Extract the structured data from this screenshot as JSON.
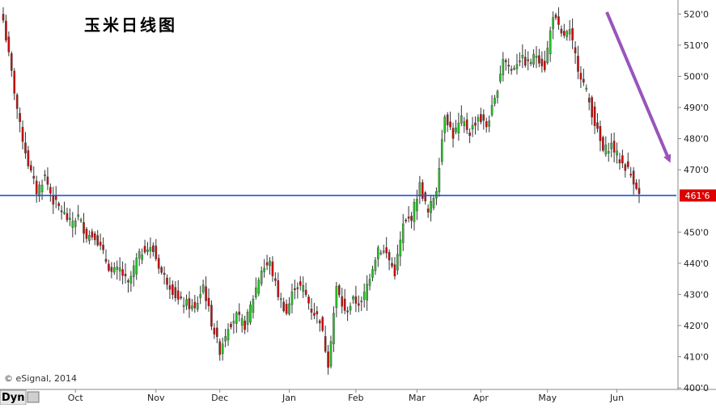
{
  "chart_data": {
    "type": "candlestick",
    "title": "玉米日线图",
    "copyright": "© eSignal, 2014",
    "footer_label": "Dyn",
    "y_ticks": [
      400,
      410,
      420,
      430,
      440,
      450,
      470,
      480,
      490,
      500,
      510,
      520
    ],
    "y_tick_labels": [
      "400'0",
      "410'0",
      "420'0",
      "430'0",
      "440'0",
      "450'0",
      "470'0",
      "480'0",
      "490'0",
      "500'0",
      "510'0",
      "520'0"
    ],
    "ylim": [
      399.5,
      524.5
    ],
    "x_months": [
      "Oct",
      "Nov",
      "Dec",
      "Jan",
      "Feb",
      "Mar",
      "Apr",
      "May",
      "Jun"
    ],
    "horizontal_line": {
      "value": 461.75,
      "label": "461'6",
      "color": "#2255cc",
      "label_color": "#dd0000"
    },
    "colors": {
      "up": "#22cc22",
      "down": "#dd0000",
      "arrow": "#9955bb",
      "axis": "#888888"
    },
    "anchors": [
      [
        0,
        518
      ],
      [
        3,
        501
      ],
      [
        6,
        484
      ],
      [
        9,
        472
      ],
      [
        12,
        463
      ],
      [
        15,
        468
      ],
      [
        18,
        460
      ],
      [
        21,
        457
      ],
      [
        24,
        453
      ],
      [
        27,
        455
      ],
      [
        30,
        449
      ],
      [
        33,
        449
      ],
      [
        36,
        443
      ],
      [
        39,
        437
      ],
      [
        42,
        438
      ],
      [
        45,
        433
      ],
      [
        48,
        441
      ],
      [
        51,
        445
      ],
      [
        54,
        444
      ],
      [
        57,
        437
      ],
      [
        60,
        433
      ],
      [
        63,
        428
      ],
      [
        66,
        427
      ],
      [
        69,
        425
      ],
      [
        72,
        433
      ],
      [
        75,
        421
      ],
      [
        78,
        412
      ],
      [
        81,
        420
      ],
      [
        84,
        423
      ],
      [
        87,
        420
      ],
      [
        90,
        429
      ],
      [
        93,
        438
      ],
      [
        96,
        440
      ],
      [
        99,
        430
      ],
      [
        102,
        424
      ],
      [
        105,
        433
      ],
      [
        108,
        432
      ],
      [
        111,
        425
      ],
      [
        114,
        422
      ],
      [
        117,
        408
      ],
      [
        120,
        432
      ],
      [
        123,
        424
      ],
      [
        126,
        428
      ],
      [
        129,
        427
      ],
      [
        132,
        436
      ],
      [
        135,
        445
      ],
      [
        138,
        443
      ],
      [
        141,
        437
      ],
      [
        144,
        452
      ],
      [
        147,
        455
      ],
      [
        150,
        465
      ],
      [
        153,
        456
      ],
      [
        156,
        464
      ],
      [
        159,
        488
      ],
      [
        162,
        481
      ],
      [
        165,
        486
      ],
      [
        168,
        482
      ],
      [
        171,
        487
      ],
      [
        174,
        484
      ],
      [
        177,
        492
      ],
      [
        180,
        506
      ],
      [
        183,
        502
      ],
      [
        186,
        506
      ],
      [
        189,
        504
      ],
      [
        192,
        507
      ],
      [
        195,
        503
      ],
      [
        198,
        520
      ],
      [
        201,
        513
      ],
      [
        204,
        514
      ],
      [
        207,
        503
      ],
      [
        210,
        495
      ],
      [
        213,
        485
      ],
      [
        216,
        476
      ],
      [
        219,
        478
      ],
      [
        222,
        473
      ],
      [
        225,
        470
      ],
      [
        228,
        465
      ],
      [
        229,
        461.75
      ]
    ]
  }
}
